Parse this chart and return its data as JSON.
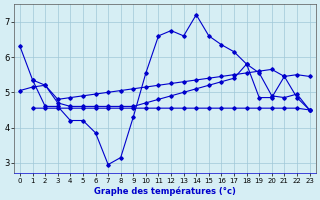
{
  "xlabel": "Graphe des températures (°c)",
  "bg_color": "#d6eef4",
  "grid_color": "#a0c8d8",
  "line_color": "#0000cc",
  "xlim": [
    -0.5,
    23.5
  ],
  "ylim": [
    2.7,
    7.5
  ],
  "yticks": [
    3,
    4,
    5,
    6,
    7
  ],
  "xticks": [
    0,
    1,
    2,
    3,
    4,
    5,
    6,
    7,
    8,
    9,
    10,
    11,
    12,
    13,
    14,
    15,
    16,
    17,
    18,
    19,
    20,
    21,
    22,
    23
  ],
  "lines": [
    {
      "x": [
        0,
        1,
        2,
        3,
        4,
        5,
        6,
        7,
        8,
        9,
        10,
        11,
        12,
        13,
        14,
        15,
        16,
        17,
        18,
        19,
        20,
        21,
        22,
        23
      ],
      "y": [
        6.3,
        5.35,
        4.6,
        4.6,
        4.2,
        4.2,
        3.85,
        2.95,
        3.15,
        4.3,
        5.55,
        6.6,
        6.75,
        6.6,
        7.2,
        6.6,
        6.35,
        6.15,
        5.8,
        4.85,
        4.85,
        5.45,
        4.85,
        4.5
      ]
    },
    {
      "x": [
        1,
        2,
        3,
        4,
        5,
        6,
        7,
        8,
        9,
        10,
        11,
        12,
        13,
        14,
        15,
        16,
        17,
        18,
        19,
        20,
        21,
        22,
        23
      ],
      "y": [
        4.55,
        4.55,
        4.55,
        4.55,
        4.55,
        4.55,
        4.55,
        4.55,
        4.55,
        4.55,
        4.55,
        4.55,
        4.55,
        4.55,
        4.55,
        4.55,
        4.55,
        4.55,
        4.55,
        4.55,
        4.55,
        4.55,
        4.5
      ]
    },
    {
      "x": [
        0,
        1,
        2,
        3,
        4,
        5,
        6,
        7,
        8,
        9,
        10,
        11,
        12,
        13,
        14,
        15,
        16,
        17,
        18,
        19,
        20,
        21,
        22,
        23
      ],
      "y": [
        5.05,
        5.15,
        5.2,
        4.8,
        4.85,
        4.9,
        4.95,
        5.0,
        5.05,
        5.1,
        5.15,
        5.2,
        5.25,
        5.3,
        5.35,
        5.4,
        5.45,
        5.5,
        5.55,
        5.6,
        5.65,
        5.45,
        5.5,
        5.45
      ]
    },
    {
      "x": [
        1,
        2,
        3,
        4,
        5,
        6,
        7,
        8,
        9,
        10,
        11,
        12,
        13,
        14,
        15,
        16,
        17,
        18,
        19,
        20,
        21,
        22,
        23
      ],
      "y": [
        5.35,
        5.2,
        4.7,
        4.6,
        4.6,
        4.6,
        4.6,
        4.6,
        4.6,
        4.7,
        4.8,
        4.9,
        5.0,
        5.1,
        5.2,
        5.3,
        5.4,
        5.8,
        5.55,
        4.9,
        4.85,
        4.95,
        4.5
      ]
    }
  ]
}
